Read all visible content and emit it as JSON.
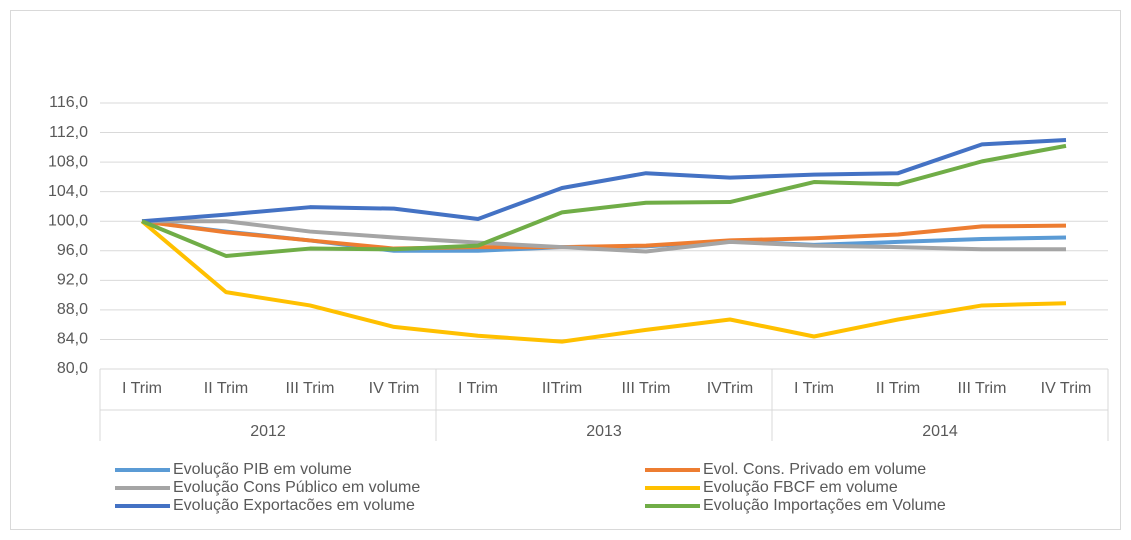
{
  "chart_data": {
    "type": "line",
    "categories": [
      "I Trim",
      "II Trim",
      "III Trim",
      "IV Trim",
      "I Trim",
      "IITrim",
      "III Trim",
      "IVTrim",
      "I Trim",
      "II Trim",
      "III Trim",
      "IV Trim"
    ],
    "years": [
      "2012",
      "2013",
      "2014"
    ],
    "ylim": [
      80,
      116
    ],
    "yticks": [
      {
        "value": 80,
        "label": "80,0"
      },
      {
        "value": 84,
        "label": "84,0"
      },
      {
        "value": 88,
        "label": "88,0"
      },
      {
        "value": 92,
        "label": "92,0"
      },
      {
        "value": 96,
        "label": "96,0"
      },
      {
        "value": 100,
        "label": "100,0"
      },
      {
        "value": 104,
        "label": "104,0"
      },
      {
        "value": 108,
        "label": "108,0"
      },
      {
        "value": 112,
        "label": "112,0"
      },
      {
        "value": 116,
        "label": "116,0"
      }
    ],
    "grid": true,
    "series": [
      {
        "name": "Evolução PIB em volume",
        "color": "#5b9bd5",
        "values": [
          100,
          98.6,
          97.4,
          96.0,
          96.0,
          96.5,
          96.6,
          97.3,
          96.8,
          97.2,
          97.6,
          97.8
        ]
      },
      {
        "name": "Evol. Cons. Privado em volume",
        "color": "#ed7d31",
        "values": [
          100,
          98.5,
          97.4,
          96.3,
          96.5,
          96.5,
          96.7,
          97.4,
          97.7,
          98.2,
          99.3,
          99.4
        ]
      },
      {
        "name": "Evolução Cons Público em volume",
        "color": "#a5a5a5",
        "values": [
          100,
          100.0,
          98.6,
          97.8,
          97.1,
          96.5,
          95.9,
          97.2,
          96.7,
          96.5,
          96.2,
          96.2
        ]
      },
      {
        "name": "Evolução FBCF em volume",
        "color": "#ffc000",
        "values": [
          100,
          90.4,
          88.6,
          85.7,
          84.5,
          83.7,
          85.3,
          86.7,
          84.4,
          86.7,
          88.6,
          88.9
        ]
      },
      {
        "name": "Evolução Exportacões em volume",
        "color": "#4472c4",
        "values": [
          100,
          100.9,
          101.9,
          101.7,
          100.3,
          104.5,
          106.5,
          105.9,
          106.3,
          106.5,
          110.4,
          111.0
        ]
      },
      {
        "name": "Evolução Importações em Volume",
        "color": "#70ad47",
        "values": [
          100,
          95.3,
          96.3,
          96.2,
          96.7,
          101.2,
          102.5,
          102.6,
          105.3,
          105.0,
          108.1,
          110.2
        ]
      }
    ]
  }
}
